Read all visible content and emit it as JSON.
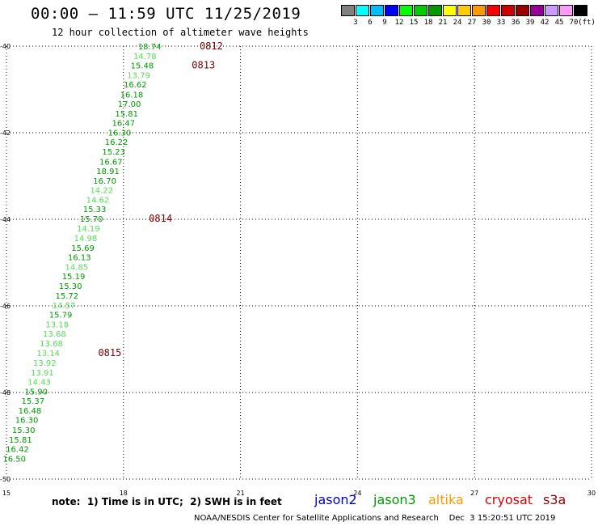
{
  "chart_data": {
    "type": "scatter",
    "title": "00:00 – 11:59 UTC 11/25/2019",
    "subtitle": "12 hour collection of altimeter wave heights",
    "xlim": [
      15,
      30
    ],
    "ylim": [
      -50,
      -40
    ],
    "x_ticks": [
      15,
      18,
      21,
      24,
      27,
      30
    ],
    "y_ticks": [
      -40,
      -42,
      -44,
      -46,
      -48,
      -50
    ],
    "x_tick_labels": [
      "15",
      "18",
      "21",
      "24",
      "27",
      "30"
    ],
    "y_tick_labels": [
      "-40",
      "-42",
      "-44",
      "-46",
      "-48",
      "-50"
    ],
    "grid": true,
    "colorbar": {
      "unit": "(ft)",
      "colors": [
        "#808080",
        "#00ffff",
        "#00bfff",
        "#0000ff",
        "#00ff00",
        "#00cc00",
        "#009900",
        "#ffff00",
        "#ffcc00",
        "#ff9900",
        "#ff0000",
        "#cc0000",
        "#990000",
        "#990099",
        "#cc99ff",
        "#ff99ff",
        "#000000"
      ],
      "ticks": [
        "3",
        "6",
        "9",
        "12",
        "15",
        "18",
        "21",
        "24",
        "27",
        "30",
        "33",
        "36",
        "39",
        "42",
        "45",
        "70"
      ]
    },
    "points": [
      {
        "x": 18.67,
        "y": -40.0,
        "label": "18.74",
        "color": "#009900"
      },
      {
        "x": 18.55,
        "y": -40.22,
        "label": "14.78",
        "color": "#55dd55"
      },
      {
        "x": 18.48,
        "y": -40.44,
        "label": "15.48",
        "color": "#009900"
      },
      {
        "x": 18.39,
        "y": -40.66,
        "label": "13.79",
        "color": "#55dd55"
      },
      {
        "x": 18.3,
        "y": -40.88,
        "label": "16.62",
        "color": "#009900"
      },
      {
        "x": 18.21,
        "y": -41.11,
        "label": "16.18",
        "color": "#009900"
      },
      {
        "x": 18.15,
        "y": -41.33,
        "label": "17.00",
        "color": "#009900"
      },
      {
        "x": 18.08,
        "y": -41.55,
        "label": "15.81",
        "color": "#009900"
      },
      {
        "x": 18.0,
        "y": -41.77,
        "label": "16.47",
        "color": "#009900"
      },
      {
        "x": 17.9,
        "y": -41.99,
        "label": "16.30",
        "color": "#009900"
      },
      {
        "x": 17.82,
        "y": -42.21,
        "label": "16.22",
        "color": "#009900"
      },
      {
        "x": 17.75,
        "y": -42.43,
        "label": "15.23",
        "color": "#009900"
      },
      {
        "x": 17.68,
        "y": -42.66,
        "label": "16.67",
        "color": "#009900"
      },
      {
        "x": 17.6,
        "y": -42.88,
        "label": "18.91",
        "color": "#009900"
      },
      {
        "x": 17.52,
        "y": -43.1,
        "label": "16.70",
        "color": "#009900"
      },
      {
        "x": 17.44,
        "y": -43.32,
        "label": "14.22",
        "color": "#55dd55"
      },
      {
        "x": 17.34,
        "y": -43.54,
        "label": "14.62",
        "color": "#55dd55"
      },
      {
        "x": 17.26,
        "y": -43.76,
        "label": "15.33",
        "color": "#009900"
      },
      {
        "x": 17.18,
        "y": -43.98,
        "label": "15.70",
        "color": "#009900"
      },
      {
        "x": 17.1,
        "y": -44.21,
        "label": "14.19",
        "color": "#55dd55"
      },
      {
        "x": 17.03,
        "y": -44.43,
        "label": "14.98",
        "color": "#55dd55"
      },
      {
        "x": 16.96,
        "y": -44.65,
        "label": "15.69",
        "color": "#009900"
      },
      {
        "x": 16.87,
        "y": -44.87,
        "label": "16.13",
        "color": "#009900"
      },
      {
        "x": 16.8,
        "y": -45.09,
        "label": "14.85",
        "color": "#55dd55"
      },
      {
        "x": 16.72,
        "y": -45.31,
        "label": "15.19",
        "color": "#009900"
      },
      {
        "x": 16.64,
        "y": -45.53,
        "label": "15.30",
        "color": "#009900"
      },
      {
        "x": 16.55,
        "y": -45.76,
        "label": "15.72",
        "color": "#009900"
      },
      {
        "x": 16.47,
        "y": -45.98,
        "label": "14.57",
        "color": "#55dd55"
      },
      {
        "x": 16.39,
        "y": -46.2,
        "label": "15.79",
        "color": "#009900"
      },
      {
        "x": 16.3,
        "y": -46.42,
        "label": "13.18",
        "color": "#55dd55"
      },
      {
        "x": 16.23,
        "y": -46.64,
        "label": "13.68",
        "color": "#55dd55"
      },
      {
        "x": 16.15,
        "y": -46.86,
        "label": "13.68",
        "color": "#55dd55"
      },
      {
        "x": 16.07,
        "y": -47.08,
        "label": "13.14",
        "color": "#55dd55"
      },
      {
        "x": 15.98,
        "y": -47.31,
        "label": "13.92",
        "color": "#55dd55"
      },
      {
        "x": 15.92,
        "y": -47.53,
        "label": "13.91",
        "color": "#55dd55"
      },
      {
        "x": 15.84,
        "y": -47.75,
        "label": "14.43",
        "color": "#55dd55"
      },
      {
        "x": 15.76,
        "y": -47.97,
        "label": "15.90",
        "color": "#009900"
      },
      {
        "x": 15.68,
        "y": -48.19,
        "label": "15.37",
        "color": "#009900"
      },
      {
        "x": 15.6,
        "y": -48.41,
        "label": "16.48",
        "color": "#009900"
      },
      {
        "x": 15.52,
        "y": -48.63,
        "label": "16.30",
        "color": "#009900"
      },
      {
        "x": 15.44,
        "y": -48.86,
        "label": "15.30",
        "color": "#009900"
      },
      {
        "x": 15.36,
        "y": -49.08,
        "label": "15.81",
        "color": "#009900"
      },
      {
        "x": 15.28,
        "y": -49.3,
        "label": "16.42",
        "color": "#009900"
      },
      {
        "x": 15.2,
        "y": -49.52,
        "label": "16.50",
        "color": "#009900"
      }
    ],
    "pass_labels": [
      {
        "x": 20.25,
        "y": -40.0,
        "label": "0812"
      },
      {
        "x": 20.05,
        "y": -40.44,
        "label": "0813"
      },
      {
        "x": 18.95,
        "y": -43.98,
        "label": "0814"
      },
      {
        "x": 17.65,
        "y": -47.08,
        "label": "0815"
      }
    ]
  },
  "footer": {
    "note": "note:  1) Time is in UTC;  2) SWH is in feet",
    "satellites": [
      {
        "name": "jason2",
        "color": "#0000cc"
      },
      {
        "name": "jason3",
        "color": "#009900"
      },
      {
        "name": "altika",
        "color": "#ff9900"
      },
      {
        "name": "cryosat",
        "color": "#dd0000"
      },
      {
        "name": "s3a",
        "color": "#990000"
      }
    ],
    "credit": "NOAA/NESDIS Center for Satellite Applications and Research    Dec  3 15:20:51 UTC 2019"
  }
}
